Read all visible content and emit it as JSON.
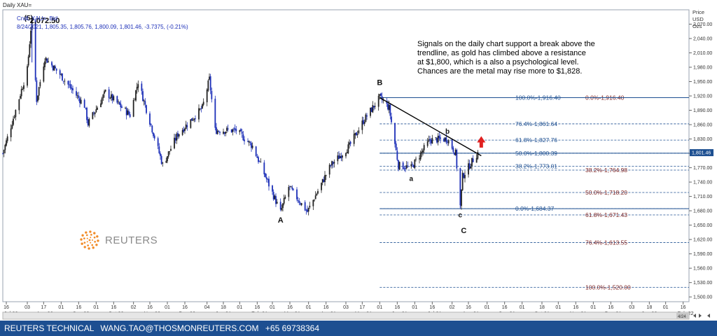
{
  "window": {
    "title": "Daily XAU=",
    "instrument": "Cndl, XAU=, Bid",
    "quote": "8/24/2021, 1,805.35, 1,805.76, 1,800.09, 1,801.46, -3.7375, (-0.21%)",
    "axis_unit_lines": [
      "Price",
      "USD",
      "Ozs"
    ],
    "last_price_box": "1,801.46",
    "scroll_label": "4/24"
  },
  "commentary": [
    "Signals on the daily chart support a break above the",
    "trendline, as gold has climbed above a resistance",
    "at $1,800, which is a also a psychological level.",
    "Chances are the metal may rise more to $1,828."
  ],
  "footer": {
    "brand": "REUTERS TECHNICAL",
    "email": "WANG.TAO@THOSMONREUTERS.COM",
    "phone": "+65 69738364"
  },
  "logo": {
    "text": "REUTERS",
    "color": "#f28c28"
  },
  "colors": {
    "up": "#222222",
    "down": "#1c2fb8",
    "fib_primary": "#1d4f91",
    "fib_secondary": "#7a1f1f",
    "trendline": "#000000",
    "arrow": "#e02020",
    "footer_bg": "#1d4f91"
  },
  "chart_data": {
    "type": "candlestick",
    "x_range": [
      "2020-07-13",
      "2022-02-21"
    ],
    "ylim": [
      1490,
      2100
    ],
    "y_ticks": [
      "1,500.00",
      "1,530.00",
      "1,560.00",
      "1,590.00",
      "1,620.00",
      "1,650.00",
      "1,680.00",
      "1,710.00",
      "1,740.00",
      "1,770.00",
      "1,800.00",
      "1,830.00",
      "1,860.00",
      "1,890.00",
      "1,920.00",
      "1,950.00",
      "1,980.00",
      "2,010.00",
      "2,040.00",
      "2,070.00"
    ],
    "y_tick_values": [
      1500,
      1530,
      1560,
      1590,
      1620,
      1650,
      1680,
      1710,
      1740,
      1770,
      1800,
      1830,
      1860,
      1890,
      1920,
      1950,
      1980,
      2010,
      2040,
      2070
    ],
    "x_day_ticks": [
      {
        "date": "2020-07-16",
        "label": "16"
      },
      {
        "date": "2020-08-03",
        "label": "03"
      },
      {
        "date": "2020-08-17",
        "label": "17"
      },
      {
        "date": "2020-09-01",
        "label": "01"
      },
      {
        "date": "2020-09-16",
        "label": "16"
      },
      {
        "date": "2020-10-01",
        "label": "01"
      },
      {
        "date": "2020-10-16",
        "label": "16"
      },
      {
        "date": "2020-11-02",
        "label": "02"
      },
      {
        "date": "2020-11-16",
        "label": "16"
      },
      {
        "date": "2020-12-01",
        "label": "01"
      },
      {
        "date": "2020-12-16",
        "label": "16"
      },
      {
        "date": "2021-01-04",
        "label": "04"
      },
      {
        "date": "2021-01-18",
        "label": "18"
      },
      {
        "date": "2021-02-01",
        "label": "01"
      },
      {
        "date": "2021-02-16",
        "label": "16"
      },
      {
        "date": "2021-03-01",
        "label": "01"
      },
      {
        "date": "2021-03-16",
        "label": "16"
      },
      {
        "date": "2021-04-01",
        "label": "01"
      },
      {
        "date": "2021-04-16",
        "label": "16"
      },
      {
        "date": "2021-05-03",
        "label": "03"
      },
      {
        "date": "2021-05-17",
        "label": "17"
      },
      {
        "date": "2021-06-01",
        "label": "01"
      },
      {
        "date": "2021-06-16",
        "label": "16"
      },
      {
        "date": "2021-07-01",
        "label": "01"
      },
      {
        "date": "2021-07-16",
        "label": "16"
      },
      {
        "date": "2021-08-02",
        "label": "02"
      },
      {
        "date": "2021-08-16",
        "label": "16"
      },
      {
        "date": "2021-09-01",
        "label": "01"
      },
      {
        "date": "2021-09-16",
        "label": "16"
      },
      {
        "date": "2021-10-01",
        "label": "01"
      },
      {
        "date": "2021-10-18",
        "label": "18"
      },
      {
        "date": "2021-11-01",
        "label": "01"
      },
      {
        "date": "2021-11-16",
        "label": "16"
      },
      {
        "date": "2021-12-01",
        "label": "01"
      },
      {
        "date": "2021-12-16",
        "label": "16"
      },
      {
        "date": "2022-01-03",
        "label": "03"
      },
      {
        "date": "2022-01-18",
        "label": "18"
      },
      {
        "date": "2022-02-01",
        "label": "01"
      },
      {
        "date": "2022-02-16",
        "label": "16"
      }
    ],
    "x_month_ticks": [
      {
        "date": "2020-07-20",
        "label": "Jul 20"
      },
      {
        "date": "2020-08-18",
        "label": "Aug 20"
      },
      {
        "date": "2020-09-18",
        "label": "Sep 20"
      },
      {
        "date": "2020-10-18",
        "label": "Oct 20"
      },
      {
        "date": "2020-11-18",
        "label": "Nov 20"
      },
      {
        "date": "2020-12-18",
        "label": "Dec 20"
      },
      {
        "date": "2021-01-18",
        "label": "Jan 21"
      },
      {
        "date": "2021-02-18",
        "label": "Feb 21"
      },
      {
        "date": "2021-03-18",
        "label": "Mar 21"
      },
      {
        "date": "2021-04-18",
        "label": "Apr 21"
      },
      {
        "date": "2021-05-18",
        "label": "May 21"
      },
      {
        "date": "2021-06-18",
        "label": "Jun 21"
      },
      {
        "date": "2021-07-18",
        "label": "Jul 21"
      },
      {
        "date": "2021-08-18",
        "label": "Aug 21"
      },
      {
        "date": "2021-09-18",
        "label": "Sep 21"
      },
      {
        "date": "2021-10-18",
        "label": "Oct 21"
      },
      {
        "date": "2021-11-18",
        "label": "Nov 21"
      },
      {
        "date": "2021-12-18",
        "label": "Dec 21"
      },
      {
        "date": "2022-01-18",
        "label": "Jan 22"
      },
      {
        "date": "2022-02-18",
        "label": "Feb 22"
      }
    ],
    "price_path": [
      [
        "2020-07-13",
        1800
      ],
      [
        "2020-07-24",
        1890
      ],
      [
        "2020-08-03",
        1975
      ],
      [
        "2020-08-06",
        2060
      ],
      [
        "2020-08-07",
        2072.5
      ],
      [
        "2020-08-11",
        1912
      ],
      [
        "2020-08-18",
        2000
      ],
      [
        "2020-08-31",
        1965
      ],
      [
        "2020-09-21",
        1900
      ],
      [
        "2020-09-24",
        1862
      ],
      [
        "2020-10-09",
        1928
      ],
      [
        "2020-10-30",
        1880
      ],
      [
        "2020-11-06",
        1950
      ],
      [
        "2020-11-27",
        1776
      ],
      [
        "2020-12-10",
        1840
      ],
      [
        "2020-12-31",
        1895
      ],
      [
        "2021-01-06",
        1955
      ],
      [
        "2021-01-11",
        1848
      ],
      [
        "2021-01-29",
        1848
      ],
      [
        "2021-02-12",
        1815
      ],
      [
        "2021-03-08",
        1677
      ],
      [
        "2021-03-15",
        1730
      ],
      [
        "2021-03-31",
        1678
      ],
      [
        "2021-04-20",
        1775
      ],
      [
        "2021-05-06",
        1815
      ],
      [
        "2021-05-18",
        1868
      ],
      [
        "2021-06-01",
        1916.4
      ],
      [
        "2021-06-09",
        1895
      ],
      [
        "2021-06-17",
        1775
      ],
      [
        "2021-06-28",
        1770
      ],
      [
        "2021-07-14",
        1828
      ],
      [
        "2021-07-29",
        1830
      ],
      [
        "2021-08-05",
        1800
      ],
      [
        "2021-08-09",
        1690
      ],
      [
        "2021-08-11",
        1752
      ],
      [
        "2021-08-19",
        1783
      ],
      [
        "2021-08-24",
        1801.46
      ]
    ],
    "wave_labels": [
      {
        "text": "(5)",
        "date": "2020-08-04",
        "price": 2078
      },
      {
        "text": "2,072.50",
        "date": "2020-08-18",
        "price": 2072
      },
      {
        "text": "A",
        "date": "2021-03-08",
        "price": 1655
      },
      {
        "text": "B",
        "date": "2021-06-01",
        "price": 1943
      },
      {
        "text": "a",
        "date": "2021-06-28",
        "price": 1742
      },
      {
        "text": "b",
        "date": "2021-07-29",
        "price": 1841
      },
      {
        "text": "c",
        "date": "2021-08-09",
        "price": 1666
      },
      {
        "text": "C",
        "date": "2021-08-12",
        "price": 1633
      }
    ],
    "trendline": {
      "from": [
        "2021-06-01",
        1916.4
      ],
      "to": [
        "2021-08-27",
        1795
      ]
    },
    "arrow": {
      "date": "2021-08-27",
      "from": 1812,
      "to": 1836
    },
    "fib_primary": [
      {
        "label": "100.0%",
        "value": 1916.4,
        "text": "1,916.40"
      },
      {
        "label": "76.4%",
        "value": 1861.64,
        "text": "1,861.64"
      },
      {
        "label": "61.8%",
        "value": 1827.76,
        "text": "1,827.76"
      },
      {
        "label": "50.0%",
        "value": 1800.39,
        "text": "1,800.39"
      },
      {
        "label": "38.2%",
        "value": 1773.01,
        "text": "1,773.01"
      },
      {
        "label": "0.0%",
        "value": 1684.37,
        "text": "1,684.37"
      }
    ],
    "fib_secondary": [
      {
        "label": "0.0%",
        "value": 1916.4,
        "text": "1,916.40"
      },
      {
        "label": "38.2%",
        "value": 1764.98,
        "text": "1,764.98"
      },
      {
        "label": "50.0%",
        "value": 1718.2,
        "text": "1,718.20"
      },
      {
        "label": "61.8%",
        "value": 1671.43,
        "text": "1,671.43"
      },
      {
        "label": "76.4%",
        "value": 1613.55,
        "text": "1,613.55"
      },
      {
        "label": "100.0%",
        "value": 1520.0,
        "text": "1,520.00"
      }
    ]
  }
}
